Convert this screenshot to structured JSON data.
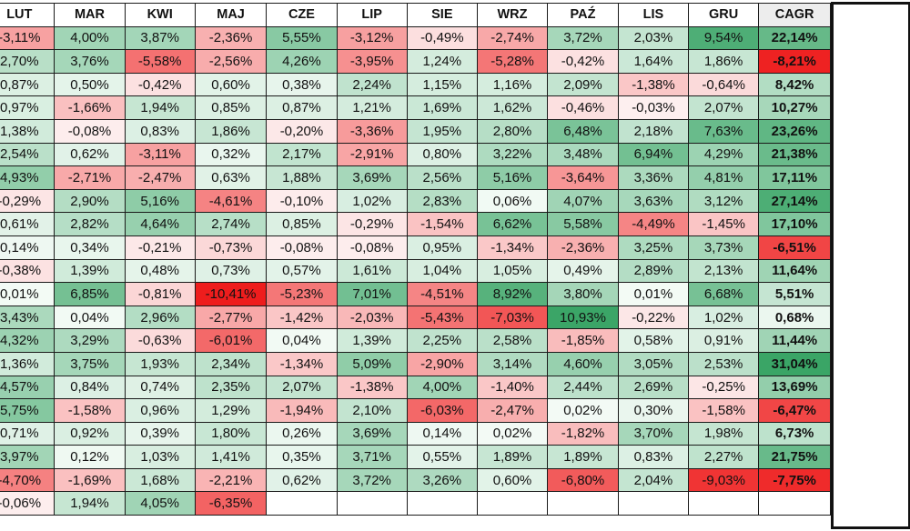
{
  "headers": {
    "first": "",
    "months": [
      "LUT",
      "MAR",
      "KWI",
      "MAJ",
      "CZE",
      "LIP",
      "SIE",
      "WRZ",
      "PAŹ",
      "LIS",
      "GRU"
    ],
    "cagr": "CAGR"
  },
  "rows": [
    {
      "lead": "",
      "months": [
        "-3,11%",
        "4,00%",
        "3,87%",
        "-2,36%",
        "5,55%",
        "-3,12%",
        "-0,49%",
        "-2,74%",
        "3,72%",
        "2,03%",
        "9,54%"
      ],
      "cagr": "22,14%"
    },
    {
      "lead": "",
      "months": [
        "2,70%",
        "3,76%",
        "-5,58%",
        "-2,56%",
        "4,26%",
        "-3,95%",
        "1,24%",
        "-5,28%",
        "-0,42%",
        "1,64%",
        "1,86%"
      ],
      "cagr": "-8,21%"
    },
    {
      "lead": "",
      "months": [
        "0,87%",
        "0,50%",
        "-0,42%",
        "0,60%",
        "0,38%",
        "2,24%",
        "1,15%",
        "1,16%",
        "2,09%",
        "-1,38%",
        "-0,64%"
      ],
      "cagr": "8,42%"
    },
    {
      "lead": "",
      "months": [
        "0,97%",
        "-1,66%",
        "1,94%",
        "0,85%",
        "0,87%",
        "1,21%",
        "1,69%",
        "1,62%",
        "-0,46%",
        "-0,03%",
        "2,07%"
      ],
      "cagr": "10,27%"
    },
    {
      "lead": "",
      "months": [
        "1,38%",
        "-0,08%",
        "0,83%",
        "1,86%",
        "-0,20%",
        "-3,36%",
        "1,95%",
        "2,80%",
        "6,48%",
        "2,18%",
        "7,63%"
      ],
      "cagr": "23,26%"
    },
    {
      "lead": "",
      "months": [
        "2,54%",
        "0,62%",
        "-3,11%",
        "0,32%",
        "2,17%",
        "-2,91%",
        "0,80%",
        "3,22%",
        "3,48%",
        "6,94%",
        "4,29%"
      ],
      "cagr": "21,38%"
    },
    {
      "lead": "",
      "months": [
        "4,93%",
        "-2,71%",
        "-2,47%",
        "0,63%",
        "1,88%",
        "3,69%",
        "2,56%",
        "5,16%",
        "-3,64%",
        "3,36%",
        "4,81%"
      ],
      "cagr": "17,11%"
    },
    {
      "lead": "",
      "months": [
        "-0,29%",
        "2,90%",
        "5,16%",
        "-4,61%",
        "-0,10%",
        "1,02%",
        "2,83%",
        "0,06%",
        "4,07%",
        "3,63%",
        "3,12%"
      ],
      "cagr": "27,14%"
    },
    {
      "lead": "",
      "months": [
        "0,61%",
        "2,82%",
        "4,64%",
        "2,74%",
        "0,85%",
        "-0,29%",
        "-1,54%",
        "6,62%",
        "5,58%",
        "-4,49%",
        "-1,45%"
      ],
      "cagr": "17,10%"
    },
    {
      "lead": "",
      "months": [
        "0,14%",
        "0,34%",
        "-0,21%",
        "-0,73%",
        "-0,08%",
        "-0,08%",
        "0,95%",
        "-1,34%",
        "-2,36%",
        "3,25%",
        "3,73%"
      ],
      "cagr": "-6,51%"
    },
    {
      "lead": "",
      "months": [
        "-0,38%",
        "1,39%",
        "0,48%",
        "0,73%",
        "0,57%",
        "1,61%",
        "1,04%",
        "1,05%",
        "0,49%",
        "2,89%",
        "2,13%"
      ],
      "cagr": "11,64%"
    },
    {
      "lead": "",
      "months": [
        "0,01%",
        "6,85%",
        "-0,81%",
        "-10,41%",
        "-5,23%",
        "7,01%",
        "-4,51%",
        "8,92%",
        "3,80%",
        "0,01%",
        "6,68%"
      ],
      "cagr": "5,51%"
    },
    {
      "lead": "",
      "months": [
        "3,43%",
        "0,04%",
        "2,96%",
        "-2,77%",
        "-1,42%",
        "-2,03%",
        "-5,43%",
        "-7,03%",
        "10,93%",
        "-0,22%",
        "1,02%"
      ],
      "cagr": "0,68%"
    },
    {
      "lead": "",
      "months": [
        "4,32%",
        "3,29%",
        "-0,63%",
        "-6,01%",
        "0,04%",
        "1,39%",
        "2,25%",
        "2,58%",
        "-1,85%",
        "0,58%",
        "0,91%"
      ],
      "cagr": "11,44%"
    },
    {
      "lead": "",
      "months": [
        "1,36%",
        "3,75%",
        "1,93%",
        "2,34%",
        "-1,34%",
        "5,09%",
        "-2,90%",
        "3,14%",
        "4,60%",
        "3,05%",
        "2,53%"
      ],
      "cagr": "31,04%"
    },
    {
      "lead": "",
      "months": [
        "4,57%",
        "0,84%",
        "0,74%",
        "2,35%",
        "2,07%",
        "-1,38%",
        "4,00%",
        "-1,40%",
        "2,44%",
        "2,69%",
        "-0,25%"
      ],
      "cagr": "13,69%"
    },
    {
      "lead": "",
      "months": [
        "5,75%",
        "-1,58%",
        "0,96%",
        "1,29%",
        "-1,94%",
        "2,10%",
        "-6,03%",
        "-2,47%",
        "0,02%",
        "0,30%",
        "-1,58%"
      ],
      "cagr": "-6,47%"
    },
    {
      "lead": "",
      "months": [
        "0,71%",
        "0,92%",
        "0,39%",
        "1,80%",
        "0,26%",
        "3,69%",
        "0,14%",
        "0,02%",
        "-1,82%",
        "3,70%",
        "1,98%"
      ],
      "cagr": "6,73%"
    },
    {
      "lead": "",
      "months": [
        "3,97%",
        "0,12%",
        "1,03%",
        "1,41%",
        "0,35%",
        "3,71%",
        "0,55%",
        "1,89%",
        "1,89%",
        "0,83%",
        "2,27%"
      ],
      "cagr": "21,75%"
    },
    {
      "lead": "",
      "months": [
        "-4,70%",
        "-1,69%",
        "1,68%",
        "-2,21%",
        "0,62%",
        "3,72%",
        "3,26%",
        "0,60%",
        "-6,80%",
        "2,04%",
        "-9,03%"
      ],
      "cagr": "-7,75%"
    },
    {
      "lead": "",
      "months": [
        "-0,06%",
        "1,94%",
        "4,05%",
        "-6,35%",
        "",
        "",
        "",
        "",
        "",
        "",
        ""
      ],
      "cagr": ""
    }
  ],
  "lead_colors": [
    "#8fd3a8",
    "#f08a8a",
    "#cdeed8",
    "#e3f5e9",
    "#b8e6c6",
    "#a8dfb8",
    "#9dd9b0",
    "#4fb57a",
    "#eef9f2",
    "#e8251f",
    "#f5fbf7",
    "#f6c7c7",
    "#f2a9a9",
    "#eaf7ef",
    "#fbe3e3",
    "#f5b8b8",
    "#f08a8a",
    "#e7f6ec",
    "#9dd9b0",
    "#f3b2b2",
    "#e6f5eb"
  ],
  "colors": {
    "positive": "#3aa566",
    "negative": "#ee1c1c",
    "neutral": "#ffffff"
  }
}
